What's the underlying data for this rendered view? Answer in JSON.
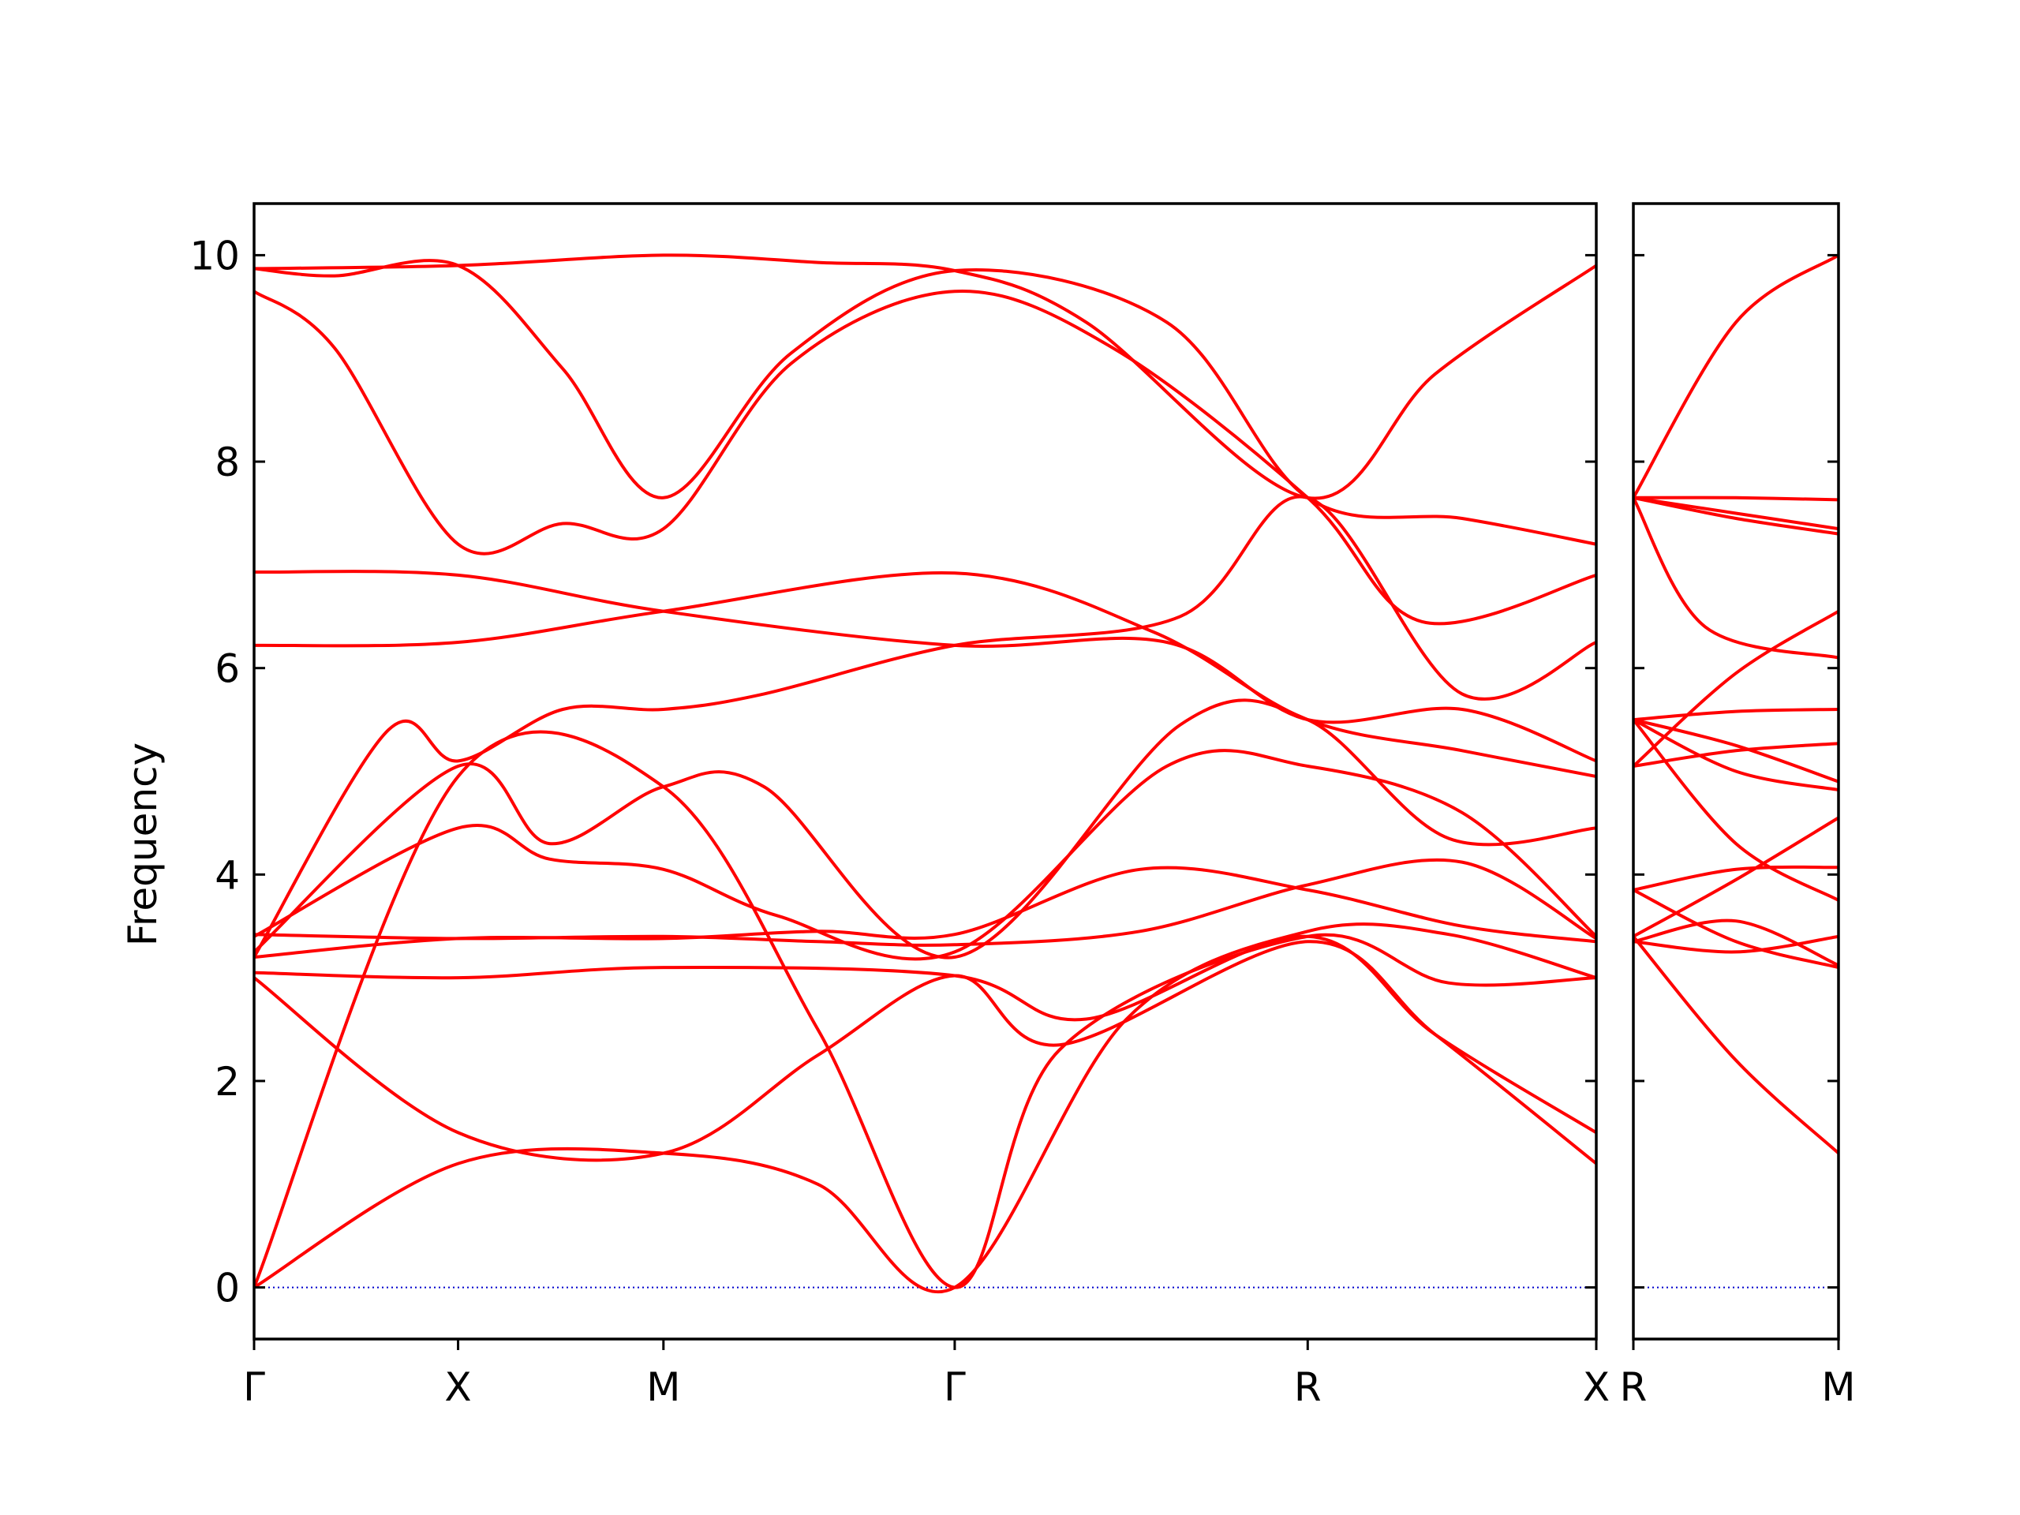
{
  "chart_data": {
    "type": "line",
    "title": "",
    "ylabel": "Frequency",
    "xlabel": "",
    "ylim": [
      -0.5,
      10.5
    ],
    "yticks": [
      0,
      2,
      4,
      6,
      8,
      10
    ],
    "grid": false,
    "legend": "none",
    "colors": {
      "bands": "#ff0000",
      "zero_line": "#0000cc",
      "axes": "#000000"
    },
    "panels": [
      {
        "name": "main",
        "x_range": [
          0,
          1.0
        ],
        "ticks": [
          {
            "label": "Γ",
            "x": 0.0
          },
          {
            "label": "X",
            "x": 0.152
          },
          {
            "label": "M",
            "x": 0.305
          },
          {
            "label": "Γ",
            "x": 0.522
          },
          {
            "label": "R",
            "x": 0.785
          },
          {
            "label": "X",
            "x": 1.0
          }
        ],
        "bands": [
          {
            "x": [
              0,
              0.152,
              0.305,
              0.42,
              0.522,
              0.62,
              0.785,
              0.88,
              1.0
            ],
            "y": [
              9.87,
              9.9,
              10.0,
              9.93,
              9.85,
              9.35,
              7.65,
              8.85,
              9.9
            ]
          },
          {
            "x": [
              0,
              0.06,
              0.152,
              0.23,
              0.305,
              0.4,
              0.522,
              0.64,
              0.785,
              0.87,
              1.0
            ],
            "y": [
              9.65,
              9.1,
              7.2,
              7.4,
              7.35,
              8.95,
              9.65,
              9.1,
              7.65,
              6.45,
              6.9
            ]
          },
          {
            "x": [
              0,
              0.06,
              0.152,
              0.23,
              0.305,
              0.4,
              0.522,
              0.68,
              0.785,
              0.9,
              1.0
            ],
            "y": [
              9.87,
              9.8,
              9.9,
              8.9,
              7.65,
              9.05,
              9.85,
              9.35,
              7.65,
              7.45,
              7.2
            ]
          },
          {
            "x": [
              0,
              0.152,
              0.305,
              0.522,
              0.68,
              0.785,
              0.9,
              1.0
            ],
            "y": [
              6.93,
              6.9,
              6.55,
              6.22,
              6.25,
              5.5,
              5.6,
              5.1
            ]
          },
          {
            "x": [
              0,
              0.152,
              0.305,
              0.522,
              0.67,
              0.785,
              0.9,
              1.0
            ],
            "y": [
              6.22,
              6.25,
              6.55,
              6.92,
              6.35,
              5.5,
              5.2,
              4.95
            ]
          },
          {
            "x": [
              0,
              0.1,
              0.152,
              0.23,
              0.305,
              0.38,
              0.522,
              0.69,
              0.785,
              0.9,
              1.0
            ],
            "y": [
              3.2,
              5.4,
              5.1,
              5.6,
              5.6,
              5.75,
              6.22,
              6.5,
              7.65,
              5.75,
              6.25
            ]
          },
          {
            "x": [
              0,
              0.152,
              0.22,
              0.305,
              0.38,
              0.522,
              0.69,
              0.785,
              0.89,
              1.0
            ],
            "y": [
              3.25,
              5.05,
              4.3,
              4.85,
              4.85,
              3.2,
              5.45,
              5.5,
              4.35,
              4.45
            ]
          },
          {
            "x": [
              0,
              0.152,
              0.22,
              0.305,
              0.39,
              0.522,
              0.68,
              0.785,
              0.9,
              1.0
            ],
            "y": [
              3.4,
              4.45,
              4.15,
              4.05,
              3.6,
              3.25,
              5.05,
              5.05,
              4.6,
              3.4
            ]
          },
          {
            "x": [
              0,
              0.152,
              0.305,
              0.42,
              0.522,
              0.66,
              0.785,
              0.9,
              1.0
            ],
            "y": [
              3.2,
              3.38,
              3.38,
              3.45,
              3.42,
              4.05,
              3.85,
              3.5,
              3.35
            ]
          },
          {
            "x": [
              0,
              0.152,
              0.305,
              0.42,
              0.522,
              0.66,
              0.785,
              0.9,
              1.0
            ],
            "y": [
              3.42,
              3.38,
              3.4,
              3.35,
              3.32,
              3.45,
              3.9,
              4.12,
              3.38
            ]
          },
          {
            "x": [
              0,
              0.152,
              0.305,
              0.522,
              0.62,
              0.785,
              0.88,
              1.0
            ],
            "y": [
              3.05,
              3.0,
              3.1,
              3.02,
              2.6,
              3.4,
              2.45,
              1.5
            ]
          },
          {
            "x": [
              0,
              0.152,
              0.305,
              0.42,
              0.522,
              0.6,
              0.785,
              0.88,
              1.0
            ],
            "y": [
              3.0,
              1.5,
              1.3,
              2.25,
              3.02,
              2.35,
              3.35,
              2.45,
              1.2
            ]
          },
          {
            "x": [
              0,
              0.152,
              0.305,
              0.42,
              0.522,
              0.65,
              0.785,
              0.89,
              1.0
            ],
            "y": [
              0.0,
              1.2,
              1.3,
              1.0,
              0.0,
              2.6,
              3.45,
              3.42,
              3.0
            ]
          },
          {
            "x": [
              0,
              0.152,
              0.305,
              0.42,
              0.522,
              0.6,
              0.785,
              0.89,
              1.0
            ],
            "y": [
              0.0,
              4.95,
              4.85,
              2.5,
              0.0,
              2.3,
              3.4,
              2.95,
              3.0
            ]
          }
        ]
      },
      {
        "name": "right",
        "x_range": [
          0,
          1.0
        ],
        "ticks": [
          {
            "label": "R",
            "x": 0.0
          },
          {
            "label": "M",
            "x": 1.0
          }
        ],
        "bands": [
          {
            "x": [
              0,
              0.5,
              1.0
            ],
            "y": [
              7.65,
              9.35,
              10.0
            ]
          },
          {
            "x": [
              0,
              0.5,
              1.0
            ],
            "y": [
              7.65,
              7.65,
              7.63
            ]
          },
          {
            "x": [
              0,
              0.5,
              1.0
            ],
            "y": [
              7.65,
              7.5,
              7.35
            ]
          },
          {
            "x": [
              0,
              0.5,
              1.0
            ],
            "y": [
              7.65,
              7.45,
              7.3
            ]
          },
          {
            "x": [
              0,
              0.35,
              1.0
            ],
            "y": [
              7.65,
              6.4,
              6.1
            ]
          },
          {
            "x": [
              0,
              0.5,
              1.0
            ],
            "y": [
              5.05,
              5.95,
              6.55
            ]
          },
          {
            "x": [
              0,
              0.5,
              1.0
            ],
            "y": [
              5.5,
              5.58,
              5.6
            ]
          },
          {
            "x": [
              0,
              0.5,
              1.0
            ],
            "y": [
              5.5,
              5.25,
              4.9
            ]
          },
          {
            "x": [
              0,
              0.5,
              1.0
            ],
            "y": [
              5.5,
              5.0,
              4.82
            ]
          },
          {
            "x": [
              0,
              0.5,
              1.0
            ],
            "y": [
              5.5,
              4.3,
              3.75
            ]
          },
          {
            "x": [
              0,
              0.5,
              1.0
            ],
            "y": [
              5.05,
              5.2,
              5.27
            ]
          },
          {
            "x": [
              0,
              0.5,
              1.0
            ],
            "y": [
              3.4,
              3.95,
              4.55
            ]
          },
          {
            "x": [
              0,
              0.5,
              1.0
            ],
            "y": [
              3.85,
              4.05,
              4.07
            ]
          },
          {
            "x": [
              0,
              0.5,
              1.0
            ],
            "y": [
              3.85,
              3.35,
              3.1
            ]
          },
          {
            "x": [
              0,
              0.5,
              1.0
            ],
            "y": [
              3.35,
              3.55,
              3.12
            ]
          },
          {
            "x": [
              0,
              0.5,
              1.0
            ],
            "y": [
              3.35,
              3.25,
              3.4
            ]
          },
          {
            "x": [
              0,
              0.5,
              1.0
            ],
            "y": [
              3.4,
              2.2,
              1.3
            ]
          }
        ]
      }
    ]
  }
}
